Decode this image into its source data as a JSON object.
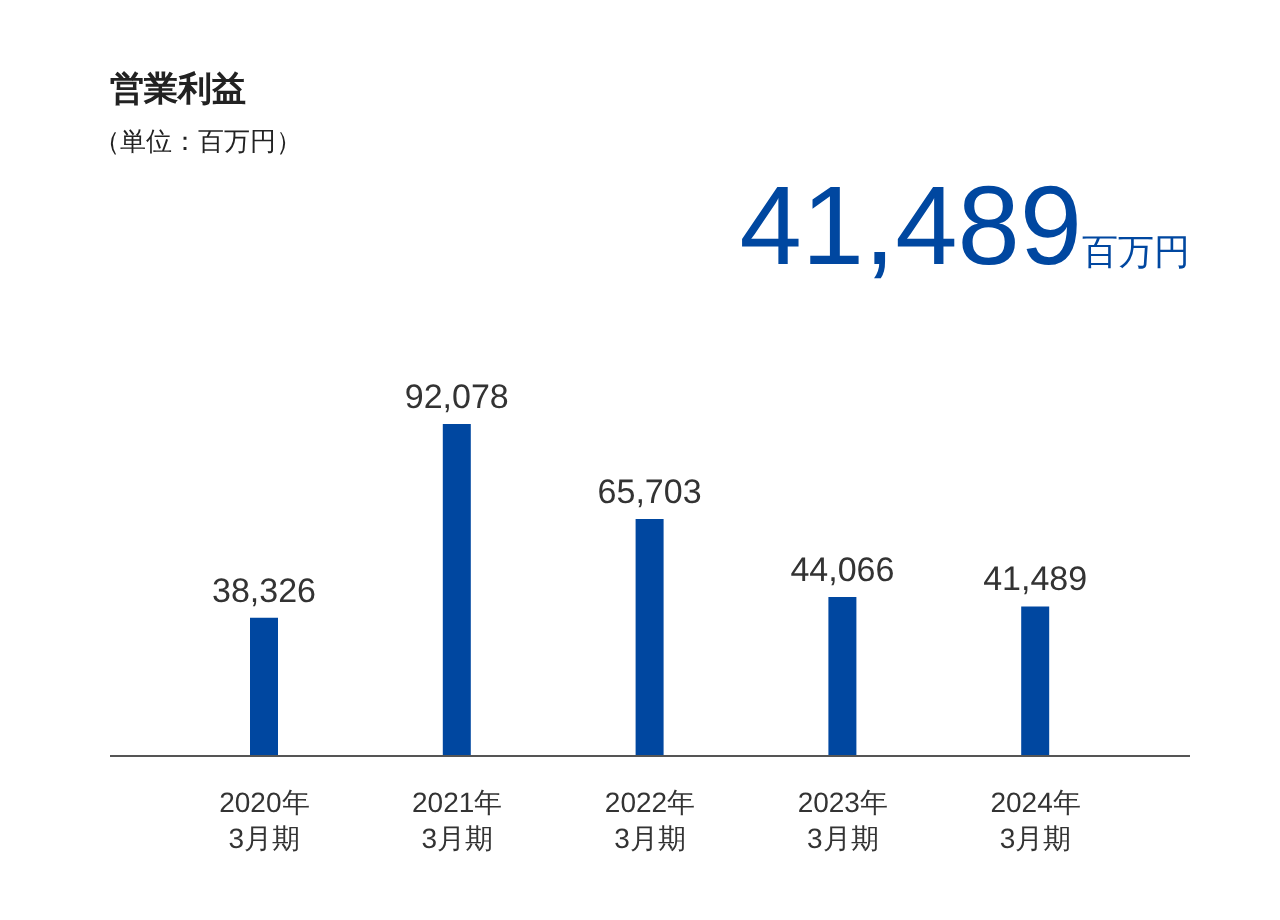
{
  "chart_data": {
    "type": "bar",
    "title": "営業利益",
    "subtitle": "（単位：百万円）",
    "annotations": [
      "41,489",
      "百万円"
    ],
    "categories": [
      "2020年\n3月期",
      "2021年\n3月期",
      "2022年\n3月期",
      "2023年\n3月期",
      "2024年\n3月期"
    ],
    "values": [
      38326,
      92078,
      65703,
      44066,
      41489
    ],
    "value_labels": [
      "38,326",
      "92,078",
      "65,703",
      "44,066",
      "41,489"
    ],
    "color": "#0047a0"
  }
}
